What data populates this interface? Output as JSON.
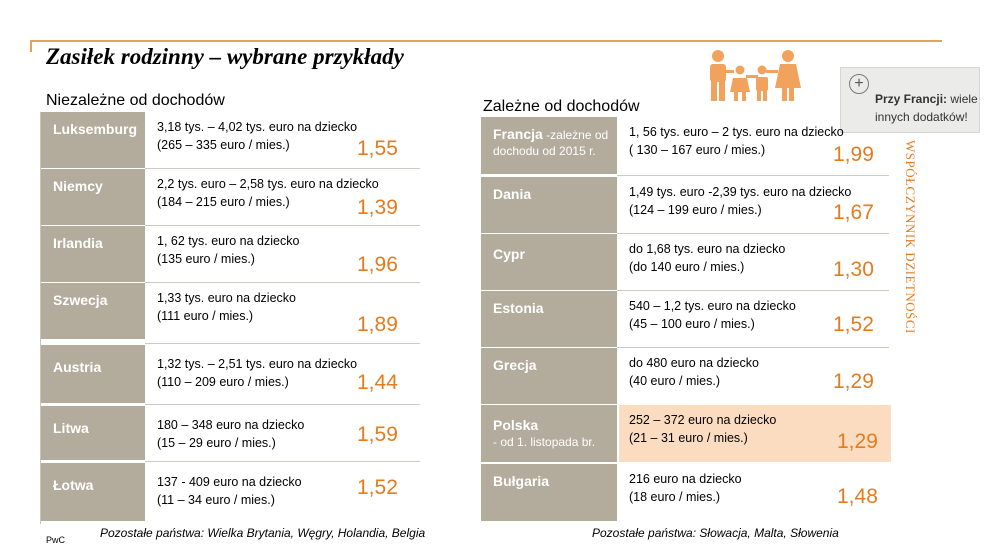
{
  "title": "Zasiłek rodzinny – wybrane przykłady",
  "left_heading": "Niezależne od dochodów",
  "right_heading": "Zależne od dochodów",
  "left_rows": [
    {
      "country": "Luksemburg",
      "line1": "3,18 tys. – 4,02 tys. euro na dziecko",
      "line2": "(265 – 335 euro / mies.)",
      "value": "1,55"
    },
    {
      "country": "Niemcy",
      "line1": "2,2 tys. euro – 2,58 tys. euro na dziecko",
      "line2": "(184 – 215 euro / mies.)",
      "value": "1,39"
    },
    {
      "country": "Irlandia",
      "line1": "1, 62 tys. euro na dziecko",
      "line2": "(135 euro / mies.)",
      "value": "1,96"
    },
    {
      "country": "Szwecja",
      "line1": "1,33 tys. euro na dziecko",
      "line2": "(111 euro / mies.)",
      "value": "1,89"
    },
    {
      "country": "Austria",
      "line1": "1,32 tys. – 2,51 tys. euro na dziecko",
      "line2": "(110 – 209 euro / mies.)",
      "value": "1,44"
    },
    {
      "country": "Litwa",
      "line1": "180 – 348 euro na dziecko",
      "line2": "(15 – 29 euro / mies.)",
      "value": "1,59"
    },
    {
      "country": "Łotwa",
      "line1": "137  - 409 euro na dziecko",
      "line2": "(11 – 34 euro / mies.)",
      "value": "1,52"
    }
  ],
  "right_rows": [
    {
      "country": "Francja",
      "sub": " -zależne od dochodu od 2015 r.",
      "line1": "1, 56 tys. euro – 2 tys. euro na dziecko",
      "line2": "( 130 – 167 euro / mies.)",
      "value": "1,99"
    },
    {
      "country": "Dania",
      "sub": "",
      "line1": "1,49 tys. euro -2,39 tys. euro na dziecko",
      "line2": "(124 – 199 euro / mies.)",
      "value": "1,67"
    },
    {
      "country": "Cypr",
      "sub": "",
      "line1": "do 1,68 tys. euro na dziecko",
      "line2": "(do 140 euro / mies.)",
      "value": "1,30"
    },
    {
      "country": "Estonia",
      "sub": "",
      "line1": "540 – 1,2 tys. euro na dziecko",
      "line2": "(45 – 100 euro / mies.)",
      "value": "1,52"
    },
    {
      "country": "Grecja",
      "sub": "",
      "line1": "do 480 euro na dziecko",
      "line2": "(40 euro / mies.)",
      "value": "1,29"
    },
    {
      "country": "Polska",
      "sub": "- od 1. listopada br.",
      "line1": "252 – 372 euro na dziecko",
      "line2": "(21 – 31 euro / mies.)",
      "value": "1,29"
    },
    {
      "country": "Bułgaria",
      "sub": "",
      "line1": "216 euro na dziecko",
      "line2": "(18 euro / mies.)",
      "value": "1,48"
    }
  ],
  "left_footer": "Pozostałe państwa: Wielka Brytania, Węgry, Holandia, Belgia",
  "right_footer": "Pozostałe państwa: Słowacja, Malta, Słowenia",
  "vertical_label": "WSPÓŁCZYNNIK DZIETNOŚCI",
  "callout": {
    "bold": "Przy Francji:",
    "text_rest": " wiele",
    "line2": "innych dodatków!"
  },
  "brand": "PwC",
  "colors": {
    "accent": "#e47b1f",
    "country_bg": "#b3ab9c",
    "highlight": "#fbdcc0",
    "family_icon": "#f1a35e"
  }
}
